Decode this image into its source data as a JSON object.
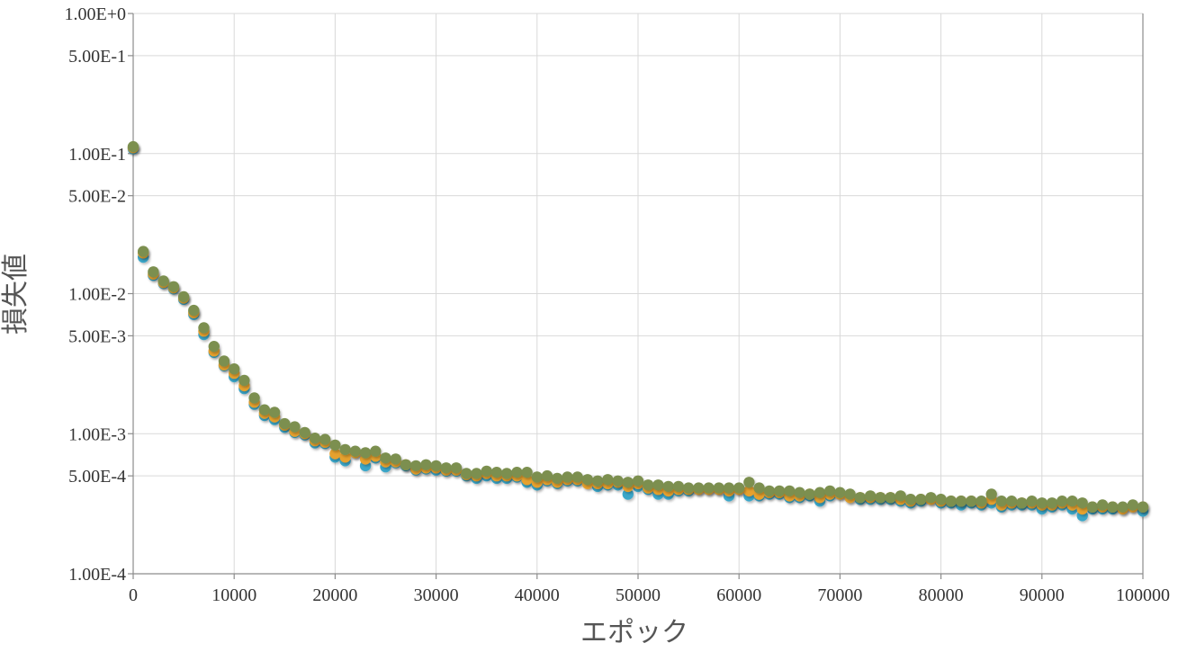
{
  "chart_data": {
    "type": "scatter",
    "title": "",
    "xlabel": "エポック",
    "ylabel": "損失値",
    "x_scale": "linear",
    "y_scale": "log",
    "xlim": [
      0,
      100000
    ],
    "ylim": [
      0.0001,
      1.0
    ],
    "x_ticks": [
      0,
      10000,
      20000,
      30000,
      40000,
      50000,
      60000,
      70000,
      80000,
      90000,
      100000
    ],
    "x_tick_labels": [
      "0",
      "10000",
      "20000",
      "30000",
      "40000",
      "50000",
      "60000",
      "70000",
      "80000",
      "90000",
      "100000"
    ],
    "y_ticks": [
      1.0,
      0.5,
      0.1,
      0.05,
      0.01,
      0.005,
      0.001,
      0.0005,
      0.0001
    ],
    "y_tick_labels": [
      "1.00E+0",
      "5.00E-1",
      "1.00E-1",
      "5.00E-2",
      "1.00E-2",
      "5.00E-3",
      "1.00E-3",
      "5.00E-4",
      "1.00E-4"
    ],
    "grid": true,
    "legend": "none",
    "series": [
      {
        "color": "#3ba7c9",
        "x": [
          0,
          1000,
          2000,
          3000,
          4000,
          5000,
          6000,
          7000,
          8000,
          9000,
          10000,
          11000,
          12000,
          13000,
          14000,
          15000,
          16000,
          17000,
          18000,
          19000,
          20000,
          21000,
          22000,
          23000,
          24000,
          25000,
          26000,
          27000,
          28000,
          29000,
          30000,
          31000,
          32000,
          33000,
          34000,
          35000,
          36000,
          37000,
          38000,
          39000,
          40000,
          41000,
          42000,
          43000,
          44000,
          45000,
          46000,
          47000,
          48000,
          49000,
          50000,
          51000,
          52000,
          53000,
          54000,
          55000,
          56000,
          57000,
          58000,
          59000,
          60000,
          61000,
          62000,
          63000,
          64000,
          65000,
          66000,
          67000,
          68000,
          69000,
          70000,
          71000,
          72000,
          73000,
          74000,
          75000,
          76000,
          77000,
          78000,
          79000,
          80000,
          81000,
          82000,
          83000,
          84000,
          85000,
          86000,
          87000,
          88000,
          89000,
          90000,
          91000,
          92000,
          93000,
          94000,
          95000,
          96000,
          97000,
          98000,
          99000,
          100000
        ],
        "y": [
          0.108,
          0.0182,
          0.0135,
          0.0118,
          0.0108,
          0.0091,
          0.0071,
          0.0051,
          0.0038,
          0.00305,
          0.00255,
          0.0021,
          0.00162,
          0.00135,
          0.00126,
          0.00111,
          0.00102,
          0.00098,
          0.00086,
          0.00085,
          0.00068,
          0.00064,
          0.00073,
          0.00059,
          0.00067,
          0.00058,
          0.00062,
          0.00059,
          0.00055,
          0.00056,
          0.00055,
          0.00054,
          0.00054,
          0.0005,
          0.00048,
          0.0005,
          0.00048,
          0.00048,
          0.00049,
          0.00045,
          0.00043,
          0.00046,
          0.00044,
          0.00046,
          0.00046,
          0.00045,
          0.00042,
          0.00043,
          0.00043,
          0.00037,
          0.00042,
          0.0004,
          0.00037,
          0.00037,
          0.00039,
          0.00039,
          0.0004,
          0.0004,
          0.0004,
          0.00036,
          0.0004,
          0.00036,
          0.00036,
          0.00037,
          0.00037,
          0.00035,
          0.00035,
          0.00036,
          0.00033,
          0.00036,
          0.00037,
          0.00035,
          0.00034,
          0.00034,
          0.00034,
          0.00034,
          0.00033,
          0.00032,
          0.00033,
          0.00034,
          0.00032,
          0.00032,
          0.00031,
          0.00032,
          0.00031,
          0.00032,
          0.0003,
          0.00031,
          0.00031,
          0.00031,
          0.00029,
          0.0003,
          0.00031,
          0.00029,
          0.00026,
          0.00029,
          0.00029,
          0.00029,
          0.00029,
          0.0003,
          0.00028
        ]
      },
      {
        "color": "#e6a12e",
        "x": [
          0,
          1000,
          2000,
          3000,
          4000,
          5000,
          6000,
          7000,
          8000,
          9000,
          10000,
          11000,
          12000,
          13000,
          14000,
          15000,
          16000,
          17000,
          18000,
          19000,
          20000,
          21000,
          22000,
          23000,
          24000,
          25000,
          26000,
          27000,
          28000,
          29000,
          30000,
          31000,
          32000,
          33000,
          34000,
          35000,
          36000,
          37000,
          38000,
          39000,
          40000,
          41000,
          42000,
          43000,
          44000,
          45000,
          46000,
          47000,
          48000,
          49000,
          50000,
          51000,
          52000,
          53000,
          54000,
          55000,
          56000,
          57000,
          58000,
          59000,
          60000,
          61000,
          62000,
          63000,
          64000,
          65000,
          66000,
          67000,
          68000,
          69000,
          70000,
          71000,
          72000,
          73000,
          74000,
          75000,
          76000,
          77000,
          78000,
          79000,
          80000,
          81000,
          82000,
          83000,
          84000,
          85000,
          86000,
          87000,
          88000,
          89000,
          90000,
          91000,
          92000,
          93000,
          94000,
          95000,
          96000,
          97000,
          98000,
          99000,
          100000
        ],
        "y": [
          0.11,
          0.0195,
          0.0138,
          0.012,
          0.011,
          0.0093,
          0.0073,
          0.0054,
          0.0039,
          0.0031,
          0.0027,
          0.0022,
          0.00168,
          0.0014,
          0.00132,
          0.00115,
          0.00104,
          0.001,
          0.00089,
          0.00087,
          0.00072,
          0.00068,
          0.00073,
          0.00066,
          0.00069,
          0.00063,
          0.00063,
          0.0006,
          0.00056,
          0.00057,
          0.00057,
          0.00055,
          0.00055,
          0.00051,
          0.0005,
          0.00052,
          0.0005,
          0.0005,
          0.0005,
          0.00047,
          0.00045,
          0.00047,
          0.00045,
          0.00047,
          0.00047,
          0.00044,
          0.00044,
          0.00044,
          0.00045,
          0.00042,
          0.00044,
          0.00041,
          0.0004,
          0.00039,
          0.0004,
          0.0004,
          0.0004,
          0.0004,
          0.0004,
          0.00039,
          0.0004,
          0.00039,
          0.00037,
          0.00038,
          0.00038,
          0.00036,
          0.00036,
          0.00037,
          0.00035,
          0.00037,
          0.00037,
          0.00035,
          0.00035,
          0.00035,
          0.00035,
          0.00035,
          0.00034,
          0.00033,
          0.00034,
          0.00034,
          0.00033,
          0.00033,
          0.00033,
          0.00033,
          0.00032,
          0.00034,
          0.00031,
          0.00032,
          0.00032,
          0.00032,
          0.00031,
          0.00031,
          0.00032,
          0.00031,
          0.00029,
          0.0003,
          0.0003,
          0.0003,
          0.00029,
          0.0003,
          0.0003
        ]
      },
      {
        "color": "#7b8f4f",
        "x": [
          0,
          1000,
          2000,
          3000,
          4000,
          5000,
          6000,
          7000,
          8000,
          9000,
          10000,
          11000,
          12000,
          13000,
          14000,
          15000,
          16000,
          17000,
          18000,
          19000,
          20000,
          21000,
          22000,
          23000,
          24000,
          25000,
          26000,
          27000,
          28000,
          29000,
          30000,
          31000,
          32000,
          33000,
          34000,
          35000,
          36000,
          37000,
          38000,
          39000,
          40000,
          41000,
          42000,
          43000,
          44000,
          45000,
          46000,
          47000,
          48000,
          49000,
          50000,
          51000,
          52000,
          53000,
          54000,
          55000,
          56000,
          57000,
          58000,
          59000,
          60000,
          61000,
          62000,
          63000,
          64000,
          65000,
          66000,
          67000,
          68000,
          69000,
          70000,
          71000,
          72000,
          73000,
          74000,
          75000,
          76000,
          77000,
          78000,
          79000,
          80000,
          81000,
          82000,
          83000,
          84000,
          85000,
          86000,
          87000,
          88000,
          89000,
          90000,
          91000,
          92000,
          93000,
          94000,
          95000,
          96000,
          97000,
          98000,
          99000,
          100000
        ],
        "y": [
          0.112,
          0.02,
          0.0143,
          0.0123,
          0.0112,
          0.0095,
          0.0076,
          0.0057,
          0.0042,
          0.0033,
          0.0029,
          0.0024,
          0.0018,
          0.00148,
          0.00142,
          0.00118,
          0.00112,
          0.00102,
          0.00093,
          0.00091,
          0.00083,
          0.00077,
          0.00075,
          0.00073,
          0.00075,
          0.00067,
          0.00066,
          0.0006,
          0.00059,
          0.0006,
          0.00059,
          0.00057,
          0.00057,
          0.00052,
          0.00052,
          0.00054,
          0.00053,
          0.00052,
          0.00053,
          0.00053,
          0.00049,
          0.0005,
          0.00048,
          0.00049,
          0.00049,
          0.00047,
          0.00046,
          0.00047,
          0.00046,
          0.00045,
          0.00046,
          0.00043,
          0.00043,
          0.00042,
          0.00042,
          0.00041,
          0.00041,
          0.00041,
          0.00041,
          0.00041,
          0.00041,
          0.00045,
          0.00041,
          0.00039,
          0.00039,
          0.00039,
          0.00038,
          0.00037,
          0.00038,
          0.00039,
          0.00038,
          0.00037,
          0.00035,
          0.00036,
          0.00035,
          0.00035,
          0.00036,
          0.00034,
          0.00034,
          0.00035,
          0.00034,
          0.00033,
          0.00033,
          0.00033,
          0.00033,
          0.00037,
          0.00033,
          0.00033,
          0.00032,
          0.00033,
          0.00032,
          0.00032,
          0.00033,
          0.00033,
          0.00032,
          0.0003,
          0.00031,
          0.0003,
          0.0003,
          0.00031,
          0.0003
        ]
      }
    ]
  }
}
